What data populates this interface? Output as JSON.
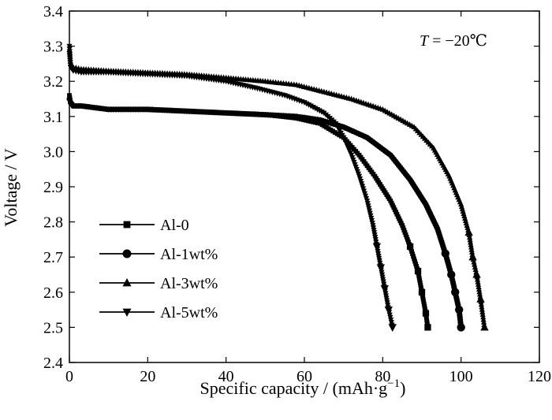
{
  "chart_data": {
    "type": "line",
    "title": "",
    "xlabel": "Specific capacity / (mAh·g",
    "xlabel_sup": "−1",
    "xlabel_end": ")",
    "ylabel": "Voltage / V",
    "xlim": [
      0,
      120
    ],
    "ylim": [
      2.4,
      3.4
    ],
    "xticks": [
      0,
      20,
      40,
      60,
      80,
      100,
      120
    ],
    "yticks": [
      2.4,
      2.5,
      2.6,
      2.7,
      2.8,
      2.9,
      3.0,
      3.1,
      3.2,
      3.3,
      3.4
    ],
    "grid": false,
    "legend_position": "bottom-left",
    "annotation": {
      "italic": "T",
      "text": " = −20℃"
    },
    "series": [
      {
        "name": "Al-0",
        "marker": "square",
        "x": [
          0,
          0.3,
          1,
          3,
          10,
          20,
          30,
          40,
          50,
          58,
          64,
          70,
          74,
          78,
          82,
          85,
          87,
          89,
          90,
          91,
          91.5
        ],
        "y": [
          3.16,
          3.14,
          3.13,
          3.13,
          3.12,
          3.12,
          3.115,
          3.11,
          3.105,
          3.095,
          3.08,
          3.04,
          2.99,
          2.93,
          2.86,
          2.79,
          2.73,
          2.66,
          2.6,
          2.54,
          2.5
        ]
      },
      {
        "name": "Al-1wt%",
        "marker": "circle",
        "x": [
          0,
          0.3,
          1,
          3,
          10,
          20,
          30,
          40,
          50,
          58,
          64,
          70,
          76,
          82,
          87,
          91,
          94,
          96,
          97.5,
          98.5,
          99.5,
          100
        ],
        "y": [
          3.15,
          3.14,
          3.13,
          3.13,
          3.12,
          3.12,
          3.115,
          3.11,
          3.105,
          3.1,
          3.09,
          3.07,
          3.04,
          2.99,
          2.92,
          2.85,
          2.78,
          2.71,
          2.65,
          2.6,
          2.55,
          2.5
        ]
      },
      {
        "name": "Al-3wt%",
        "marker": "triangle-up",
        "x": [
          0,
          0.3,
          1,
          3,
          10,
          20,
          30,
          40,
          50,
          58,
          65,
          72,
          80,
          88,
          93,
          97,
          100,
          102,
          103,
          104,
          105,
          106
        ],
        "y": [
          3.29,
          3.25,
          3.24,
          3.235,
          3.23,
          3.225,
          3.22,
          3.21,
          3.2,
          3.19,
          3.17,
          3.15,
          3.12,
          3.07,
          3.01,
          2.93,
          2.85,
          2.77,
          2.7,
          2.65,
          2.58,
          2.5
        ]
      },
      {
        "name": "Al-5wt%",
        "marker": "triangle-down",
        "x": [
          0,
          0.3,
          1,
          3,
          10,
          20,
          30,
          40,
          48,
          55,
          60,
          65,
          68,
          70,
          72,
          74,
          76,
          77.5,
          78.5,
          79.5,
          80.5,
          81.5,
          82.5
        ],
        "y": [
          3.3,
          3.24,
          3.23,
          3.225,
          3.225,
          3.22,
          3.215,
          3.2,
          3.18,
          3.16,
          3.14,
          3.11,
          3.08,
          3.04,
          2.99,
          2.93,
          2.86,
          2.79,
          2.73,
          2.67,
          2.61,
          2.55,
          2.5
        ]
      }
    ]
  }
}
